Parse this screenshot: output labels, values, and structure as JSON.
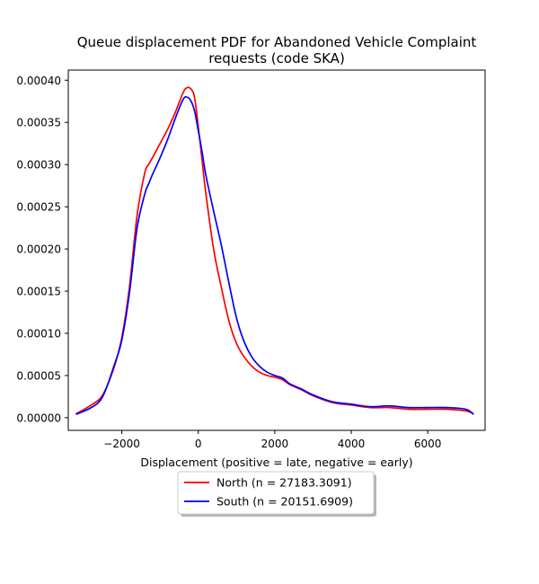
{
  "chart_data": {
    "type": "line",
    "title_line1": "Queue displacement PDF for Abandoned Vehicle Complaint",
    "title_line2": "requests (code SKA)",
    "xlabel": "Displacement (positive = late, negative = early)",
    "ylabel": "",
    "xlim": [
      -3400,
      7500
    ],
    "ylim": [
      -1.5e-05,
      0.000412
    ],
    "x_ticks": [
      -2000,
      0,
      2000,
      4000,
      6000
    ],
    "x_tick_labels": [
      "−2000",
      "0",
      "2000",
      "4000",
      "6000"
    ],
    "y_ticks": [
      0,
      5e-05,
      0.0001,
      0.00015,
      0.0002,
      0.00025,
      0.0003,
      0.00035,
      0.0004
    ],
    "y_tick_labels": [
      "0.00000",
      "0.00005",
      "0.00010",
      "0.00015",
      "0.00020",
      "0.00025",
      "0.00030",
      "0.00035",
      "0.00040"
    ],
    "grid": false,
    "legend_position": "bottom-center, below axes",
    "series": [
      {
        "name": "North (n = 27183.3091)",
        "color": "#ff0000",
        "x": [
          -3200,
          -2800,
          -2500,
          -2200,
          -2000,
          -1800,
          -1600,
          -1400,
          -1300,
          -1200,
          -1000,
          -800,
          -600,
          -400,
          -300,
          -200,
          -100,
          0,
          100,
          200,
          400,
          600,
          800,
          1000,
          1200,
          1400,
          1600,
          1800,
          2000,
          2200,
          2400,
          2700,
          3000,
          3500,
          4000,
          4500,
          5000,
          5500,
          6000,
          6500,
          7000,
          7200
        ],
        "y": [
          4.5e-06,
          1.5e-05,
          2.7e-05,
          6e-05,
          9.5e-05,
          0.000155,
          0.00024,
          0.00029,
          0.0003,
          0.000308,
          0.000325,
          0.000342,
          0.000362,
          0.000385,
          0.000391,
          0.00039,
          0.00038,
          0.000345,
          0.000305,
          0.000265,
          0.0002,
          0.000155,
          0.000115,
          8.8e-05,
          7.2e-05,
          6.1e-05,
          5.4e-05,
          5e-05,
          4.8e-05,
          4.5e-05,
          3.9e-05,
          3.3e-05,
          2.6e-05,
          1.8e-05,
          1.5e-05,
          1.2e-05,
          1.2e-05,
          1e-05,
          1e-05,
          1e-05,
          8e-06,
          4.5e-06
        ]
      },
      {
        "name": "South (n = 20151.6909)",
        "color": "#0000ff",
        "x": [
          -3200,
          -2800,
          -2500,
          -2200,
          -2000,
          -1800,
          -1600,
          -1400,
          -1300,
          -1200,
          -1000,
          -800,
          -600,
          -400,
          -300,
          -200,
          -100,
          0,
          100,
          200,
          400,
          600,
          800,
          1000,
          1200,
          1400,
          1600,
          1800,
          2000,
          2200,
          2400,
          2700,
          3000,
          3500,
          4000,
          4500,
          5000,
          5500,
          6000,
          6500,
          7000,
          7200
        ],
        "y": [
          4e-06,
          1.2e-05,
          2.5e-05,
          6.2e-05,
          9.2e-05,
          0.000148,
          0.000225,
          0.000265,
          0.000277,
          0.000288,
          0.000308,
          0.00033,
          0.000355,
          0.000377,
          0.00038,
          0.000376,
          0.000364,
          0.00034,
          0.000315,
          0.000287,
          0.000245,
          0.000205,
          0.00016,
          0.000118,
          9e-05,
          7.2e-05,
          6.1e-05,
          5.4e-05,
          5e-05,
          4.7e-05,
          4e-05,
          3.4e-05,
          2.7e-05,
          1.9e-05,
          1.6e-05,
          1.3e-05,
          1.4e-05,
          1.2e-05,
          1.2e-05,
          1.2e-05,
          1e-05,
          4e-06
        ]
      }
    ]
  }
}
